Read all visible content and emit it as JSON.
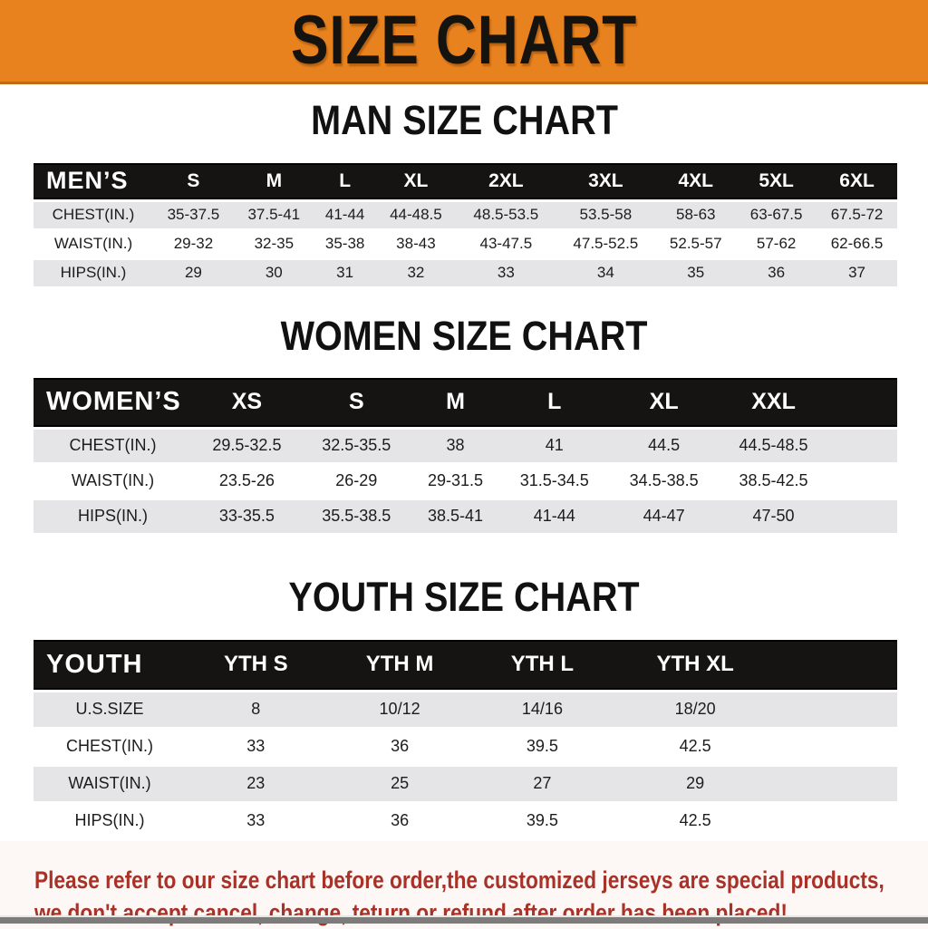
{
  "banner": {
    "title": "SIZE CHART"
  },
  "sections": [
    {
      "heading": "MAN SIZE CHART",
      "table": {
        "header_label": "MEN’S",
        "columns": [
          "S",
          "M",
          "L",
          "XL",
          "2XL",
          "3XL",
          "4XL",
          "5XL",
          "6XL"
        ],
        "rows": [
          {
            "label": "CHEST(IN.)",
            "values": [
              "35-37.5",
              "37.5-41",
              "41-44",
              "44-48.5",
              "48.5-53.5",
              "53.5-58",
              "58-63",
              "63-67.5",
              "67.5-72"
            ]
          },
          {
            "label": "WAIST(IN.)",
            "values": [
              "29-32",
              "32-35",
              "35-38",
              "38-43",
              "43-47.5",
              "47.5-52.5",
              "52.5-57",
              "57-62",
              "62-66.5"
            ]
          },
          {
            "label": "HIPS(IN.)",
            "values": [
              "29",
              "30",
              "31",
              "32",
              "33",
              "34",
              "35",
              "36",
              "37"
            ]
          }
        ]
      }
    },
    {
      "heading": "WOMEN SIZE CHART",
      "table": {
        "header_label": "WOMEN’S",
        "columns": [
          "XS",
          "S",
          "M",
          "L",
          "XL",
          "XXL"
        ],
        "rows": [
          {
            "label": "CHEST(IN.)",
            "values": [
              "29.5-32.5",
              "32.5-35.5",
              "38",
              "41",
              "44.5",
              "44.5-48.5"
            ]
          },
          {
            "label": "WAIST(IN.)",
            "values": [
              "23.5-26",
              "26-29",
              "29-31.5",
              "31.5-34.5",
              "34.5-38.5",
              "38.5-42.5"
            ]
          },
          {
            "label": "HIPS(IN.)",
            "values": [
              "33-35.5",
              "35.5-38.5",
              "38.5-41",
              "41-44",
              "44-47",
              "47-50"
            ]
          }
        ]
      }
    },
    {
      "heading": "YOUTH SIZE CHART",
      "table": {
        "header_label": "YOUTH",
        "columns": [
          "YTH S",
          "YTH M",
          "YTH L",
          "YTH XL"
        ],
        "rows": [
          {
            "label": "U.S.SIZE",
            "values": [
              "8",
              "10/12",
              "14/16",
              "18/20"
            ]
          },
          {
            "label": "CHEST(IN.)",
            "values": [
              "33",
              "36",
              "39.5",
              "42.5"
            ]
          },
          {
            "label": "WAIST(IN.)",
            "values": [
              "23",
              "25",
              "27",
              "29"
            ]
          },
          {
            "label": "HIPS(IN.)",
            "values": [
              "33",
              "36",
              "39.5",
              "42.5"
            ]
          }
        ]
      }
    }
  ],
  "disclaimer": {
    "line1": "Please refer to our size chart before order,the customized jerseys are special products,",
    "line2": "we don't accept cancel, change, teturn or refund after order has been placed!"
  },
  "colors": {
    "banner_bg": "#E8821E",
    "banner_border": "#C4690F",
    "table_header_bg": "#151413",
    "row_alt_bg": "#E5E5E7",
    "disclaimer_red": "#A83228",
    "bottom_bar_gray": "#7D7C7A"
  }
}
